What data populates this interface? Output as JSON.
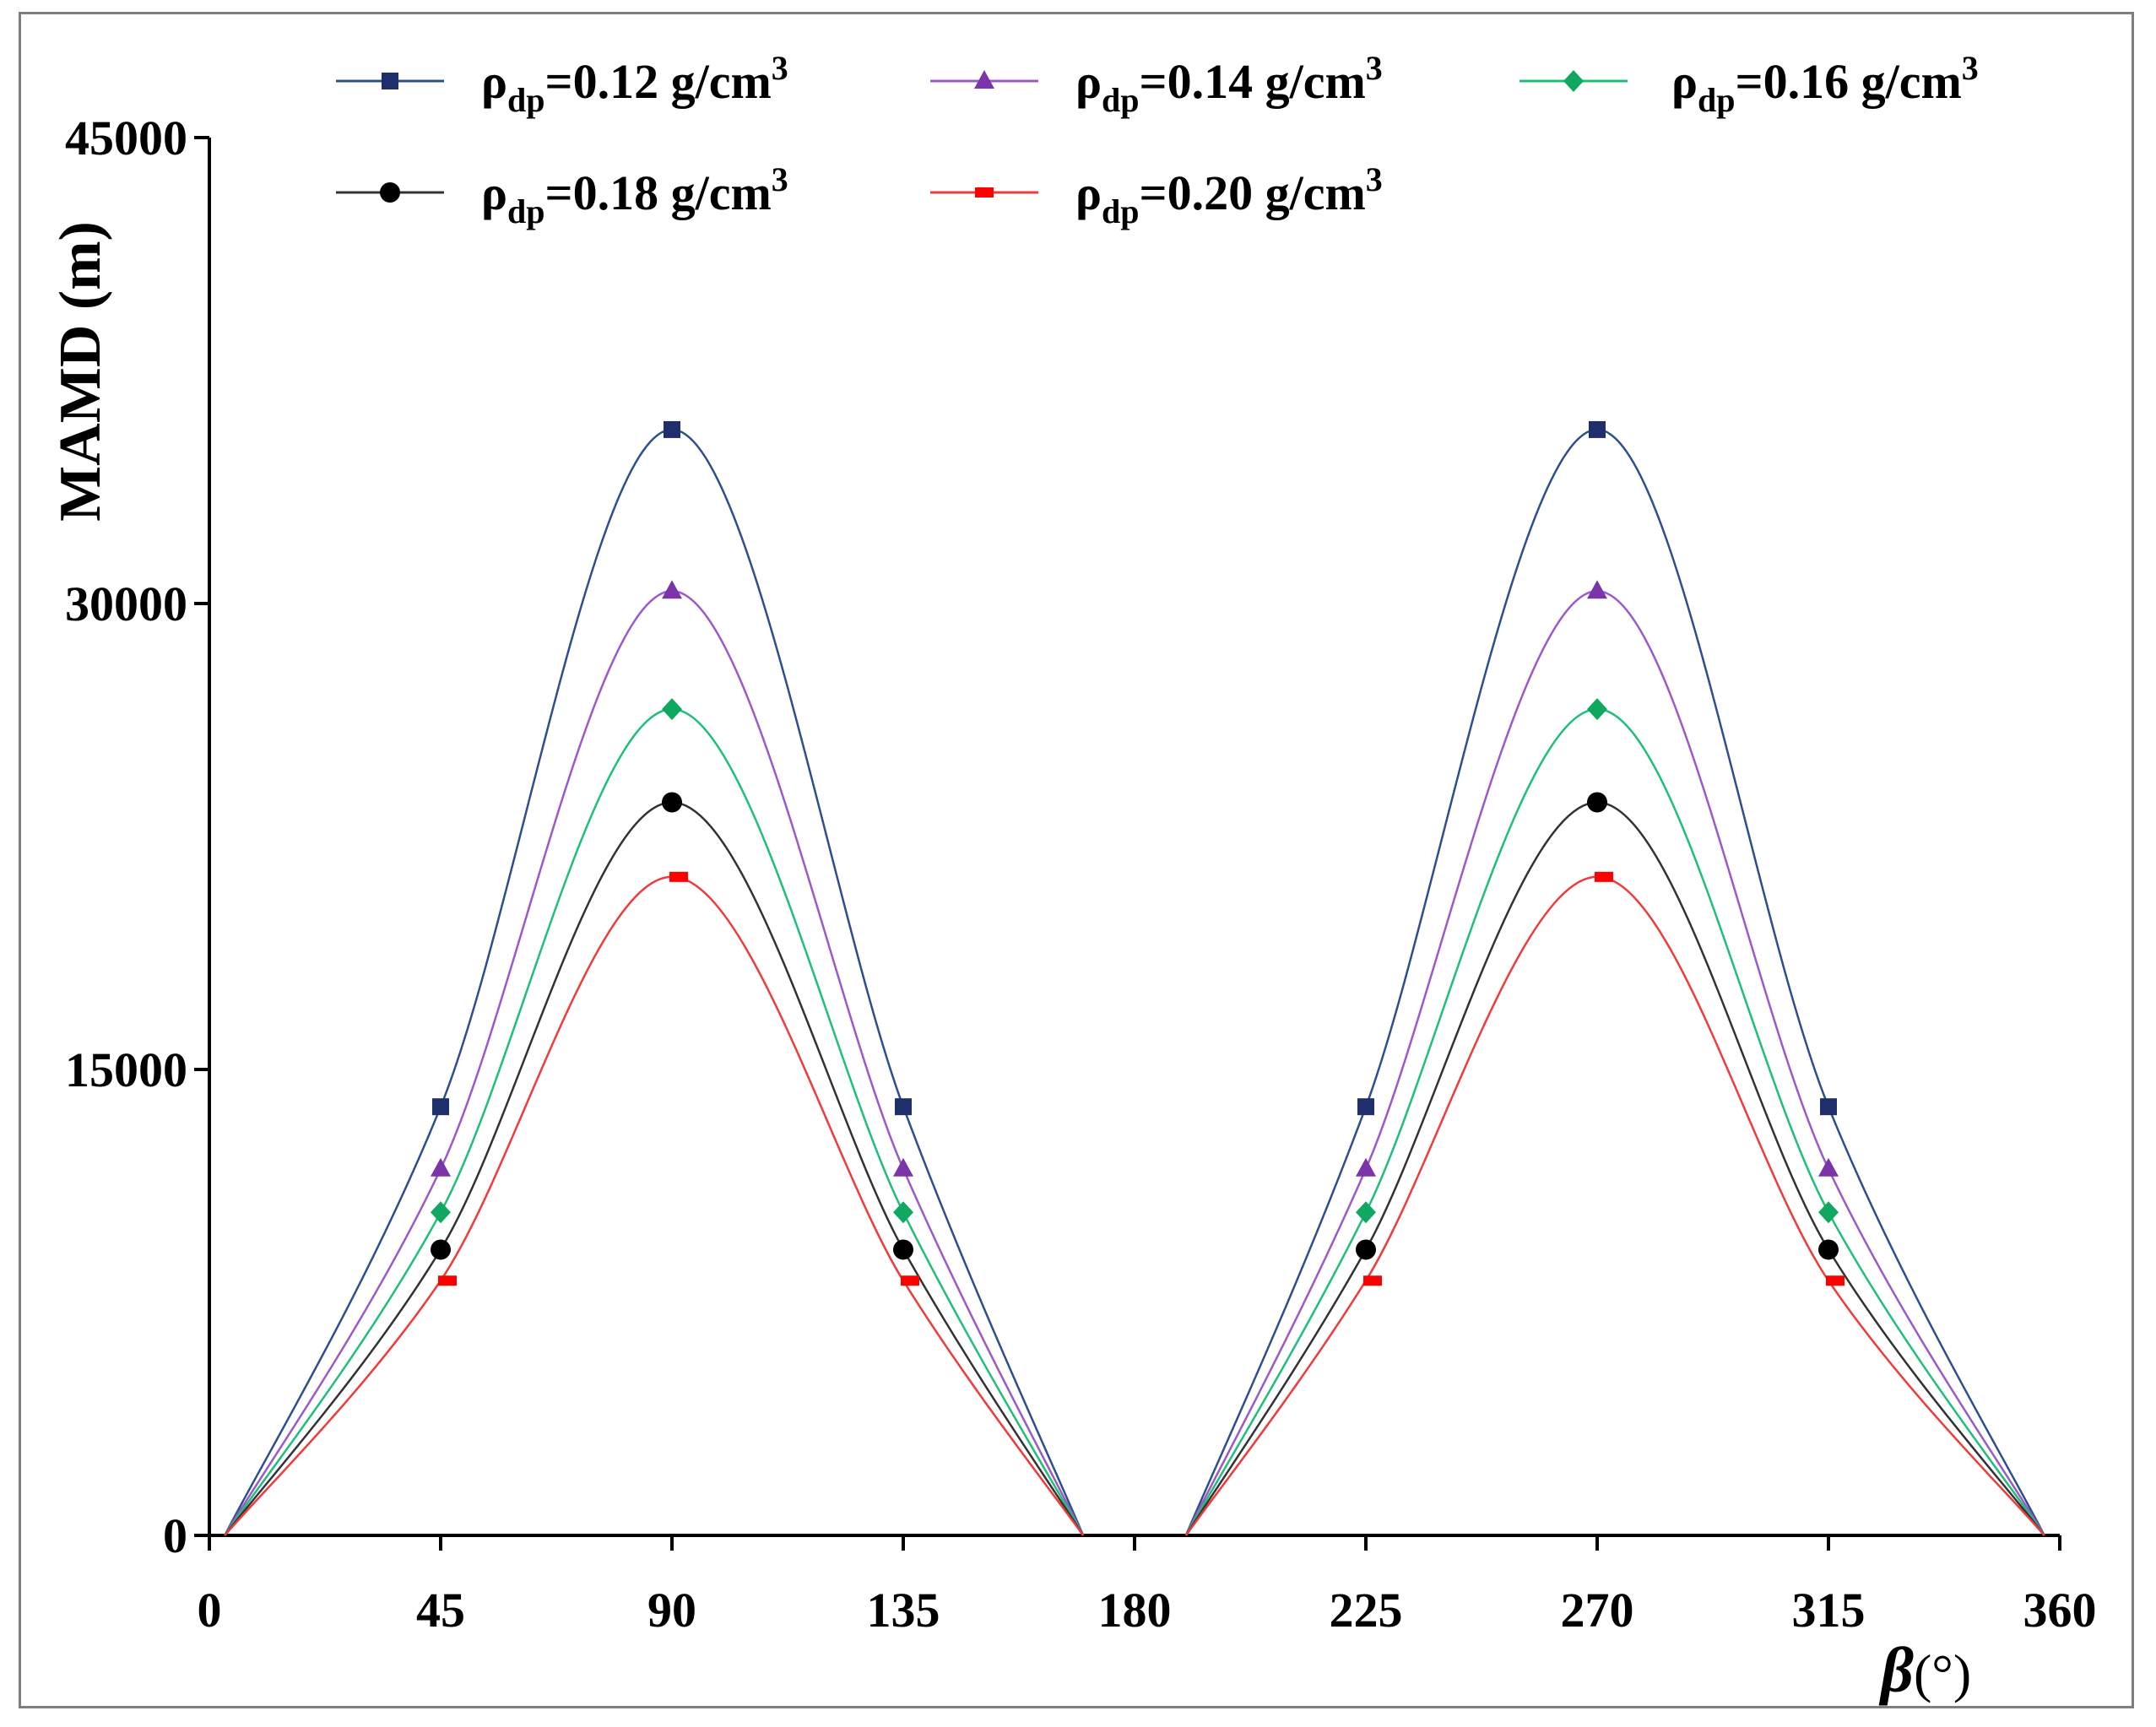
{
  "chart_data": {
    "type": "line",
    "title": "",
    "xlabel_symbol": "β",
    "xlabel_unit": "(°)",
    "ylabel": "MAMD (m)",
    "xlim": [
      0,
      360
    ],
    "ylim": [
      0,
      45000
    ],
    "x_ticks": [
      "0",
      "45",
      "90",
      "135",
      "180",
      "225",
      "270",
      "315",
      "360"
    ],
    "y_ticks": [
      "0",
      "15000",
      "30000",
      "45000"
    ],
    "x_tick_values": [
      0,
      45,
      90,
      135,
      180,
      225,
      270,
      315,
      360
    ],
    "y_tick_values": [
      0,
      15000,
      30000,
      45000
    ],
    "grid": false,
    "legend_position": "top",
    "markers_x": [
      45,
      90,
      135,
      225,
      270,
      315
    ],
    "series": [
      {
        "name": "ρdp=0.12 g/cm3",
        "legend_rho": "ρ",
        "legend_sub": "dp",
        "legend_val": "=0.12 g/cm",
        "legend_sup": "3",
        "color": "#2e4f8f",
        "marker_color": "#1f2f6b",
        "marker": "square",
        "curve_x": [
          3,
          45,
          90,
          135,
          170,
          190,
          225,
          270,
          315,
          357
        ],
        "curve_y": [
          0,
          13800,
          35600,
          13800,
          0,
          0,
          13800,
          35600,
          13800,
          0
        ],
        "markers_y": [
          13800,
          35600,
          13800,
          13800,
          35600,
          13800
        ]
      },
      {
        "name": "ρdp=0.14 g/cm3",
        "legend_rho": "ρ",
        "legend_sub": "dp",
        "legend_val": "=0.14 g/cm",
        "legend_sup": "3",
        "color": "#9b59c9",
        "marker_color": "#7b35a8",
        "marker": "triangle",
        "curve_x": [
          3,
          45,
          90,
          135,
          170,
          190,
          225,
          270,
          315,
          357
        ],
        "curve_y": [
          0,
          11800,
          30400,
          11800,
          0,
          0,
          11800,
          30400,
          11800,
          0
        ],
        "markers_y": [
          11800,
          30400,
          11800,
          11800,
          30400,
          11800
        ]
      },
      {
        "name": "ρdp=0.16 g/cm3",
        "legend_rho": "ρ",
        "legend_sub": "dp",
        "legend_val": "=0.16 g/cm",
        "legend_sup": "3",
        "color": "#1fbf7a",
        "marker_color": "#10a860",
        "marker": "diamond",
        "curve_x": [
          3,
          45,
          90,
          135,
          170,
          190,
          225,
          270,
          315,
          357
        ],
        "curve_y": [
          0,
          10400,
          26600,
          10400,
          0,
          0,
          10400,
          26600,
          10400,
          0
        ],
        "markers_y": [
          10400,
          26600,
          10400,
          10400,
          26600,
          10400
        ]
      },
      {
        "name": "ρdp=0.18 g/cm3",
        "legend_rho": "ρ",
        "legend_sub": "dp",
        "legend_val": "=0.18 g/cm",
        "legend_sup": "3",
        "color": "#333333",
        "marker_color": "#000000",
        "marker": "circle",
        "curve_x": [
          3,
          45,
          90,
          135,
          170,
          190,
          225,
          270,
          315,
          357
        ],
        "curve_y": [
          0,
          9200,
          23600,
          9200,
          0,
          0,
          9200,
          23600,
          9200,
          0
        ],
        "markers_y": [
          9200,
          23600,
          9200,
          9200,
          23600,
          9200
        ]
      },
      {
        "name": "ρdp=0.20 g/cm3",
        "legend_rho": "ρ",
        "legend_sub": "dp",
        "legend_val": "=0.20 g/cm",
        "legend_sup": "3",
        "color": "#ee3b3b",
        "marker_color": "#ff0000",
        "marker": "dash",
        "curve_x": [
          3,
          45,
          90,
          135,
          170,
          190,
          225,
          270,
          315,
          357
        ],
        "curve_y": [
          0,
          8200,
          21200,
          8200,
          0,
          0,
          8200,
          21200,
          8200,
          0
        ],
        "markers_y": [
          8200,
          21200,
          8200,
          8200,
          21200,
          8200
        ]
      }
    ]
  }
}
